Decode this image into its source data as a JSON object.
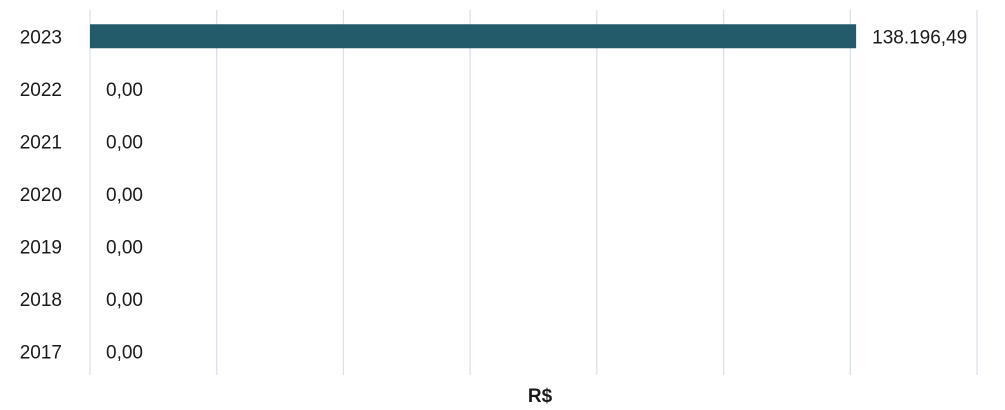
{
  "chart_data": {
    "type": "bar",
    "orientation": "horizontal",
    "categories": [
      "2023",
      "2022",
      "2021",
      "2020",
      "2019",
      "2018",
      "2017"
    ],
    "values": [
      138196.49,
      0,
      0,
      0,
      0,
      0,
      0
    ],
    "value_labels": [
      "138.196,49",
      "0,00",
      "0,00",
      "0,00",
      "0,00",
      "0,00",
      "0,00"
    ],
    "xlabel": "R$",
    "ylabel": "",
    "xlim": [
      0,
      160000
    ],
    "grid": true,
    "bar_color": "#245b6b",
    "grid_color": "#d9e1ea"
  }
}
